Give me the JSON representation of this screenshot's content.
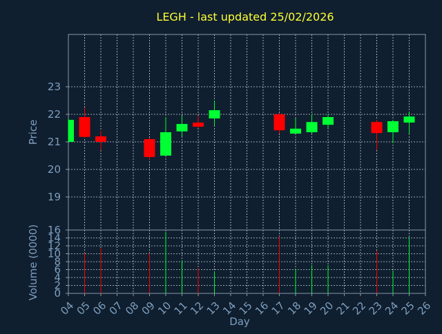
{
  "title": "LEGH - last updated 25/02/2026",
  "colors": {
    "background": "#0f1f2f",
    "axis": "#8899aa",
    "grid": "#c8d2dc",
    "title": "#ffff33",
    "label": "#7f9fbf",
    "up": "#00ff33",
    "down": "#ff0000"
  },
  "chart_data": [
    {
      "type": "candlestick",
      "ylabel": "Price",
      "ylim": [
        17.8,
        24.9
      ],
      "yticks": [
        19,
        20,
        21,
        22,
        23
      ],
      "grid": true,
      "xlim": [
        4,
        26
      ],
      "candles": [
        {
          "day": 4,
          "open": 21.0,
          "high": 21.85,
          "low": 21.0,
          "close": 21.8
        },
        {
          "day": 5,
          "open": 21.9,
          "high": 22.25,
          "low": 21.15,
          "close": 21.18
        },
        {
          "day": 6,
          "open": 21.2,
          "high": 21.4,
          "low": 20.7,
          "close": 21.0
        },
        {
          "day": 9,
          "open": 21.1,
          "high": 21.15,
          "low": 20.35,
          "close": 20.45
        },
        {
          "day": 10,
          "open": 20.5,
          "high": 21.9,
          "low": 20.5,
          "close": 21.35
        },
        {
          "day": 11,
          "open": 21.38,
          "high": 21.95,
          "low": 21.2,
          "close": 21.65
        },
        {
          "day": 12,
          "open": 21.7,
          "high": 21.95,
          "low": 21.5,
          "close": 21.55
        },
        {
          "day": 13,
          "open": 21.85,
          "high": 22.5,
          "low": 21.6,
          "close": 22.15
        },
        {
          "day": 17,
          "open": 22.0,
          "high": 22.05,
          "low": 21.3,
          "close": 21.42
        },
        {
          "day": 18,
          "open": 21.3,
          "high": 21.85,
          "low": 21.3,
          "close": 21.48
        },
        {
          "day": 19,
          "open": 21.35,
          "high": 22.0,
          "low": 21.3,
          "close": 21.72
        },
        {
          "day": 20,
          "open": 21.62,
          "high": 22.0,
          "low": 21.5,
          "close": 21.9
        },
        {
          "day": 23,
          "open": 21.72,
          "high": 21.8,
          "low": 20.7,
          "close": 21.32
        },
        {
          "day": 24,
          "open": 21.35,
          "high": 21.8,
          "low": 20.95,
          "close": 21.75
        },
        {
          "day": 25,
          "open": 21.7,
          "high": 22.1,
          "low": 21.3,
          "close": 21.92
        }
      ]
    },
    {
      "type": "bar",
      "ylabel": "Volume (0000)",
      "xlabel": "Day",
      "ylim": [
        0,
        16
      ],
      "yticks": [
        0,
        2,
        4,
        6,
        8,
        10,
        12,
        14,
        16
      ],
      "categories": [
        "04",
        "05",
        "06",
        "07",
        "08",
        "09",
        "10",
        "11",
        "12",
        "13",
        "14",
        "15",
        "16",
        "17",
        "18",
        "19",
        "20",
        "21",
        "22",
        "23",
        "24",
        "25",
        "26"
      ],
      "bars": [
        {
          "day": 4,
          "value": 0,
          "dir": "up"
        },
        {
          "day": 5,
          "value": 10.2,
          "dir": "down"
        },
        {
          "day": 6,
          "value": 11.4,
          "dir": "down"
        },
        {
          "day": 9,
          "value": 10.2,
          "dir": "down"
        },
        {
          "day": 10,
          "value": 15.5,
          "dir": "up"
        },
        {
          "day": 11,
          "value": 8.3,
          "dir": "up"
        },
        {
          "day": 12,
          "value": 6.4,
          "dir": "down"
        },
        {
          "day": 13,
          "value": 5.6,
          "dir": "up"
        },
        {
          "day": 17,
          "value": 14.4,
          "dir": "down"
        },
        {
          "day": 18,
          "value": 6.2,
          "dir": "up"
        },
        {
          "day": 19,
          "value": 7.1,
          "dir": "up"
        },
        {
          "day": 20,
          "value": 7.1,
          "dir": "up"
        },
        {
          "day": 23,
          "value": 10.8,
          "dir": "down"
        },
        {
          "day": 24,
          "value": 5.8,
          "dir": "up"
        },
        {
          "day": 25,
          "value": 14.2,
          "dir": "up"
        }
      ]
    }
  ]
}
